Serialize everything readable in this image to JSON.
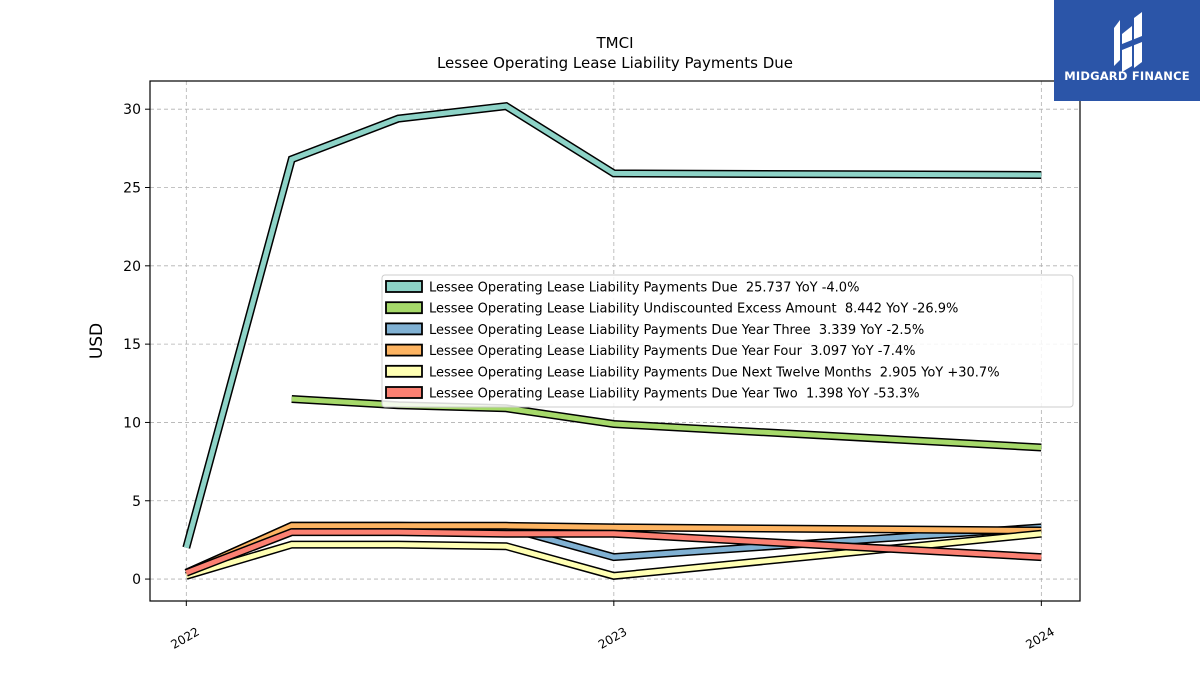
{
  "chart_data": {
    "type": "line",
    "title": "TMCI",
    "subtitle": "Lessee Operating Lease Liability Payments Due",
    "ylabel": "USD",
    "xlabel": "",
    "ylim": [
      -1.4,
      31.8
    ],
    "yticks": [
      0,
      5,
      10,
      15,
      20,
      25,
      30
    ],
    "xticks": [
      "2022",
      "2023",
      "2024"
    ],
    "grid": true,
    "legend_position": "center-right",
    "series": [
      {
        "name": "Lessee Operating Lease Liability Payments Due",
        "legend": "Lessee Operating Lease Liability Payments Due  25.737 YoY -4.0%",
        "color": "#8dd3c7",
        "points": [
          [
            "2022-01-01",
            2.0
          ],
          [
            "2022-04-01",
            26.8
          ],
          [
            "2022-07-01",
            29.4
          ],
          [
            "2022-10-01",
            30.2
          ],
          [
            "2023-01-01",
            25.9
          ],
          [
            "2024-01-01",
            25.8
          ]
        ]
      },
      {
        "name": "Lessee Operating Lease Liability Undiscounted Excess Amount",
        "legend": "Lessee Operating Lease Liability Undiscounted Excess Amount  8.442 YoY -26.9%",
        "color": "#a6d96a",
        "points": [
          [
            "2022-04-01",
            11.5
          ],
          [
            "2022-07-01",
            11.1
          ],
          [
            "2022-10-01",
            10.9
          ],
          [
            "2023-01-01",
            9.9
          ],
          [
            "2024-01-01",
            8.4
          ]
        ]
      },
      {
        "name": "Lessee Operating Lease Liability Payments Due Year Three",
        "legend": "Lessee Operating Lease Liability Payments Due Year Three  3.339 YoY -2.5%",
        "color": "#80b1d3",
        "points": [
          [
            "2022-01-01",
            0.4
          ],
          [
            "2022-04-01",
            3.4
          ],
          [
            "2022-07-01",
            3.4
          ],
          [
            "2022-10-01",
            3.3
          ],
          [
            "2023-01-01",
            1.4
          ],
          [
            "2024-01-01",
            3.3
          ]
        ]
      },
      {
        "name": "Lessee Operating Lease Liability Payments Due Year Four",
        "legend": "Lessee Operating Lease Liability Payments Due Year Four  3.097 YoY -7.4%",
        "color": "#fdb462",
        "points": [
          [
            "2022-01-01",
            0.4
          ],
          [
            "2022-04-01",
            3.4
          ],
          [
            "2022-07-01",
            3.4
          ],
          [
            "2022-10-01",
            3.4
          ],
          [
            "2023-01-01",
            3.3
          ],
          [
            "2024-01-01",
            3.1
          ]
        ]
      },
      {
        "name": "Lessee Operating Lease Liability Payments Due Next Twelve Months",
        "legend": "Lessee Operating Lease Liability Payments Due Next Twelve Months  2.905 YoY +30.7%",
        "color": "#ffffb3",
        "points": [
          [
            "2022-01-01",
            0.2
          ],
          [
            "2022-04-01",
            2.2
          ],
          [
            "2022-07-01",
            2.2
          ],
          [
            "2022-10-01",
            2.1
          ],
          [
            "2023-01-01",
            0.2
          ],
          [
            "2024-01-01",
            2.9
          ]
        ]
      },
      {
        "name": "Lessee Operating Lease Liability Payments Due Year Two",
        "legend": "Lessee Operating Lease Liability Payments Due Year Two  1.398 YoY -53.3%",
        "color": "#fb8072",
        "points": [
          [
            "2022-01-01",
            0.4
          ],
          [
            "2022-04-01",
            3.0
          ],
          [
            "2022-07-01",
            3.0
          ],
          [
            "2022-10-01",
            2.9
          ],
          [
            "2023-01-01",
            2.9
          ],
          [
            "2024-01-01",
            1.4
          ]
        ]
      }
    ]
  },
  "logo": {
    "text": "MIDGARD FINANCE",
    "background": "#2b55a8"
  }
}
